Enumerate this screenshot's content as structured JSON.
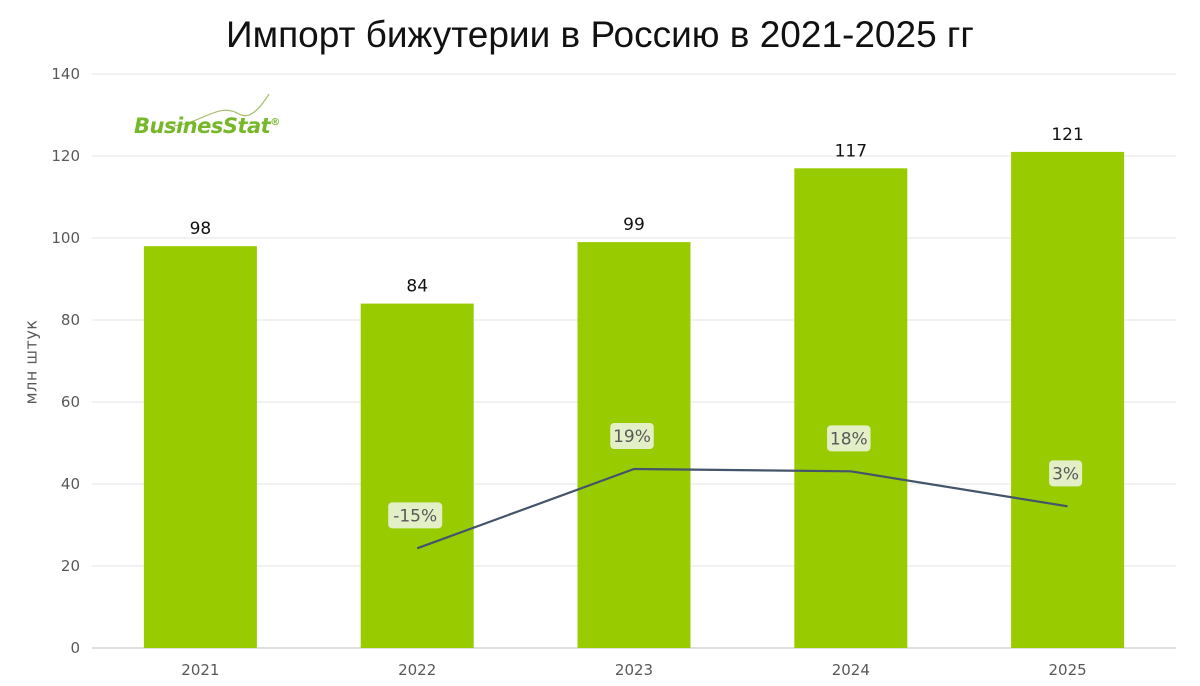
{
  "title": "Импорт бижутерии в Россию в 2021-2025 гг",
  "logo": {
    "text": "BusinesStat",
    "mark": "®"
  },
  "colors": {
    "bar": "#99cc00",
    "line": "#44546a",
    "label_bg": "#e2efc7",
    "grid": "#e6e6e6"
  },
  "chart_data": {
    "type": "bar",
    "title": "Импорт бижутерии в Россию в 2021-2025 гг",
    "ylabel": "млн штук",
    "xlabel": "",
    "categories": [
      "2021",
      "2022",
      "2023",
      "2024",
      "2025"
    ],
    "values": [
      98,
      84,
      99,
      117,
      121
    ],
    "value_labels": [
      "98",
      "84",
      "99",
      "117",
      "121"
    ],
    "ylim": [
      0,
      140
    ],
    "yticks": [
      0,
      20,
      40,
      60,
      80,
      100,
      120,
      140
    ],
    "grid": true,
    "growth_line": {
      "type": "line",
      "categories": [
        "2022",
        "2023",
        "2024",
        "2025"
      ],
      "values": [
        -15,
        19,
        18,
        3
      ],
      "labels": [
        "-15%",
        "19%",
        "18%",
        "3%"
      ],
      "axis": "secondary (not shown)"
    }
  }
}
